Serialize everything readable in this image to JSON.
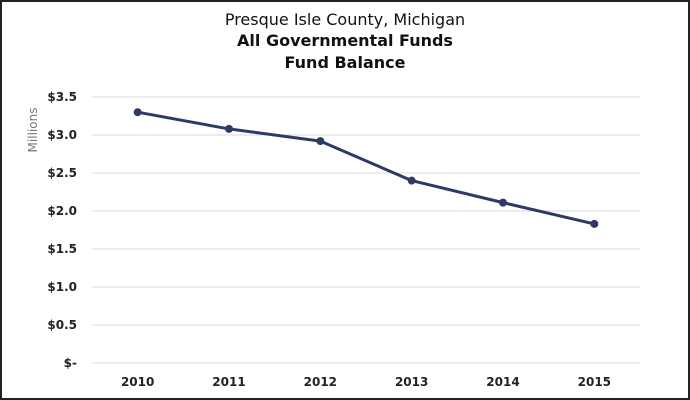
{
  "chart_data": {
    "type": "line",
    "title": "Presque Isle County, Michigan",
    "subtitle": [
      "All Governmental Funds",
      "Fund Balance"
    ],
    "xlabel": "",
    "ylabel": "Millions",
    "categories": [
      "2010",
      "2011",
      "2012",
      "2013",
      "2014",
      "2015"
    ],
    "series": [
      {
        "name": "Fund Balance",
        "values": [
          3.3,
          3.08,
          2.92,
          2.4,
          2.11,
          1.83
        ],
        "color": "#2e3a66"
      }
    ],
    "ylim": [
      0,
      3.5
    ],
    "yticks": [
      0,
      0.5,
      1.0,
      1.5,
      2.0,
      2.5,
      3.0,
      3.5
    ],
    "ytick_labels": [
      "$-",
      "$0.5",
      "$1.0",
      "$1.5",
      "$2.0",
      "$2.5",
      "$3.0",
      "$3.5"
    ],
    "grid": true,
    "legend": "none"
  }
}
